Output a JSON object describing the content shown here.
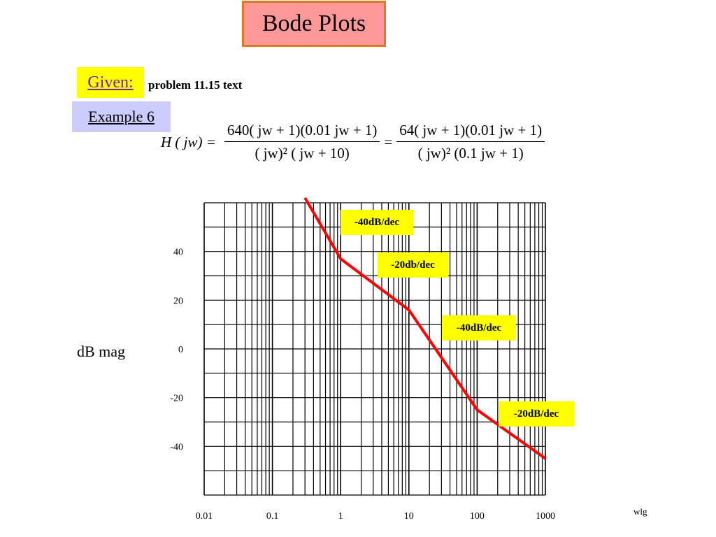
{
  "title": "Bode Plots",
  "given_label": "Given:",
  "given_text": "problem 11.15 text",
  "example_label": "Example 6",
  "equation": {
    "lhs": "H ( jw) =",
    "frac1_num": "640( jw + 1)(0.01 jw + 1)",
    "frac1_den": "( jw)² ( jw + 10)",
    "equals": "=",
    "frac2_num": "64( jw + 1)(0.01 jw + 1)",
    "frac2_den": "( jw)² (0.1 jw + 1)"
  },
  "footer": "wlg",
  "chart_data": {
    "type": "line",
    "xscale": "log",
    "xlim": [
      0.01,
      1000
    ],
    "ylim": [
      -60,
      60
    ],
    "ylabel": "dB mag",
    "x_ticks": [
      "0.01",
      "0.1",
      "1",
      "10",
      "100",
      "1000"
    ],
    "y_ticks": [
      "40",
      "20",
      "0",
      "-20",
      "-40"
    ],
    "grid": true,
    "line_color": "#ff0000",
    "series": [
      {
        "x": [
          0.3,
          1,
          10,
          100,
          1000
        ],
        "y": [
          62,
          37,
          16,
          -25,
          -45
        ]
      }
    ],
    "annotations": [
      {
        "text": "-40dB/dec"
      },
      {
        "text": "-20db/dec"
      },
      {
        "text": "-40dB/dec"
      },
      {
        "text": "-20dB/dec"
      }
    ],
    "annotation_color": "#ffff00"
  }
}
